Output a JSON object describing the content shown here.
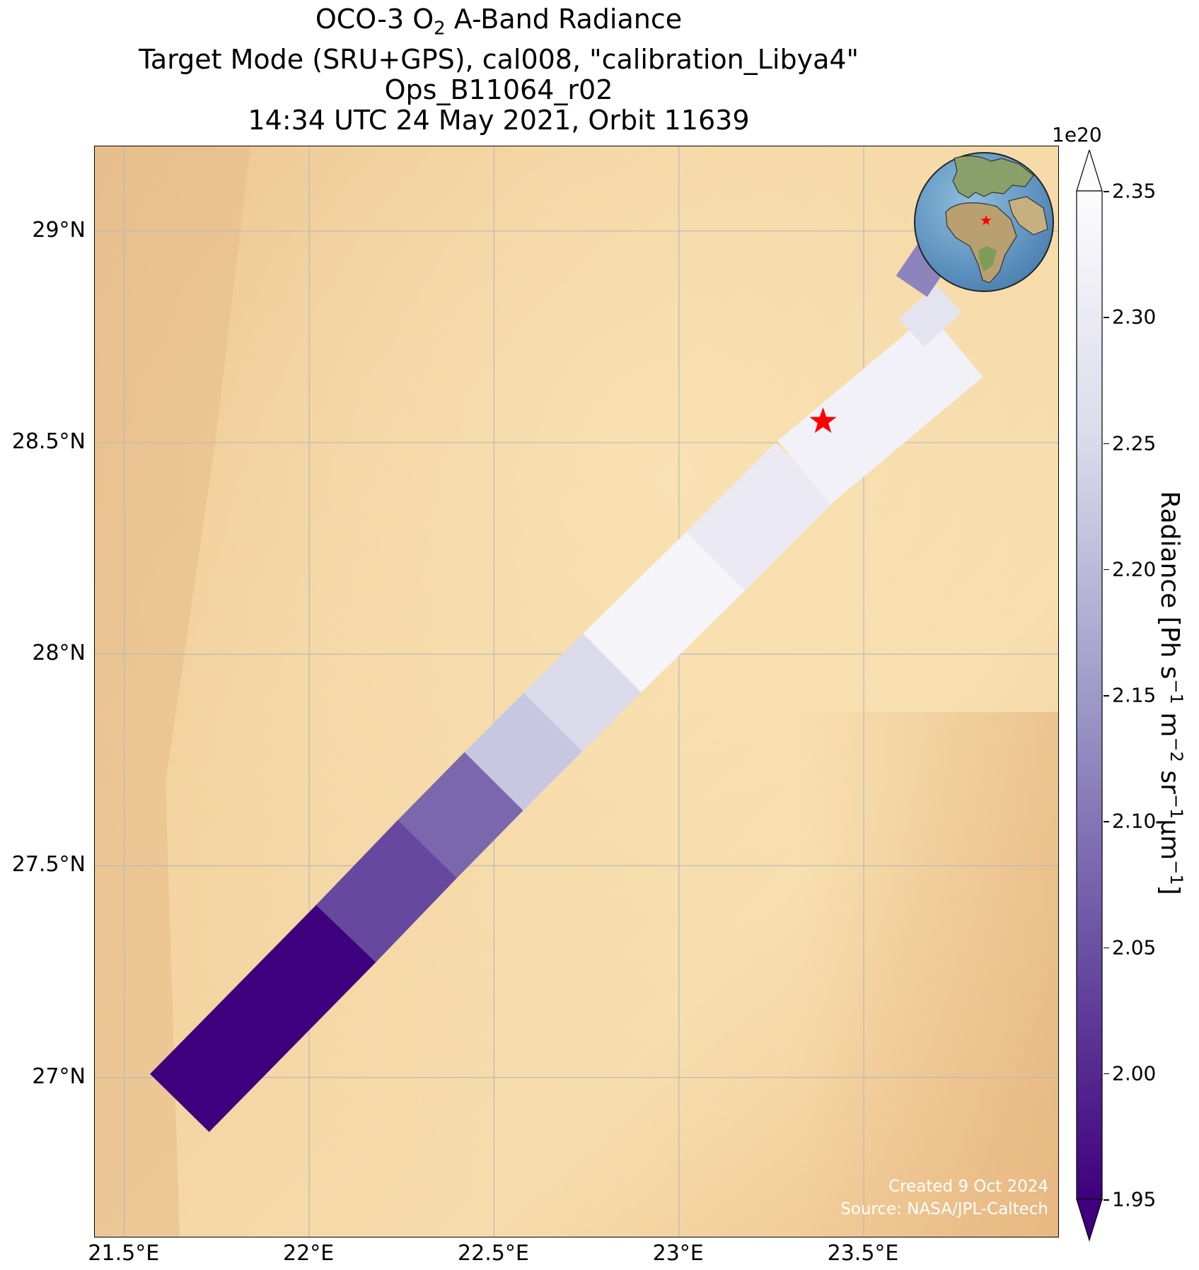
{
  "title": {
    "line1_prefix": "OCO-3 O",
    "line1_sub": "2",
    "line1_suffix": " A-Band Radiance",
    "line2": "Target Mode (SRU+GPS), cal008, \"calibration_Libya4\"",
    "line3": "Ops_B11064_r02",
    "line4": "14:34 UTC 24 May 2021, Orbit 11639"
  },
  "credits": {
    "created": "Created 9 Oct 2024",
    "source": "Source: NASA/JPL-Caltech"
  },
  "colors": {
    "background_map": "#f3d7a6",
    "colormap_low": "#3f007d",
    "colormap_high": "#fcfbfd",
    "target_marker": "#ff0000",
    "gridline": "#b9b9b9"
  },
  "chart_data": {
    "type": "heatmap",
    "projection": "map swath (lon/lat)",
    "xlim": [
      21.42,
      24.03
    ],
    "ylim": [
      26.62,
      29.2
    ],
    "x_ticks": [
      {
        "value": 21.5,
        "label": "21.5°E"
      },
      {
        "value": 22.0,
        "label": "22°E"
      },
      {
        "value": 22.5,
        "label": "22.5°E"
      },
      {
        "value": 23.0,
        "label": "23°E"
      },
      {
        "value": 23.5,
        "label": "23.5°E"
      }
    ],
    "y_ticks": [
      {
        "value": 27.0,
        "label": "27°N"
      },
      {
        "value": 27.5,
        "label": "27.5°N"
      },
      {
        "value": 28.0,
        "label": "28°N"
      },
      {
        "value": 28.5,
        "label": "28.5°N"
      },
      {
        "value": 29.0,
        "label": "29°N"
      }
    ],
    "grid": true,
    "target": {
      "name": "calibration_Libya4",
      "lon": 23.39,
      "lat": 28.55,
      "marker": "star"
    },
    "colorbar": {
      "label_parts": [
        "Radiance [Ph s",
        "−1",
        " m",
        "−2",
        " sr",
        "−1",
        "μm",
        "−1",
        "]"
      ],
      "scale_label": "1e20",
      "range": [
        1.95,
        2.35
      ],
      "extend": "both",
      "ticks": [
        "1.95",
        "2.00",
        "2.05",
        "2.10",
        "2.15",
        "2.20",
        "2.25",
        "2.30",
        "2.35"
      ]
    },
    "swath_segments": [
      {
        "lon_start": 21.65,
        "lat_start": 26.94,
        "lon_end": 22.1,
        "lat_end": 27.34,
        "radiance": 1.95
      },
      {
        "lon_start": 22.1,
        "lat_start": 27.34,
        "lon_end": 22.32,
        "lat_end": 27.54,
        "radiance": 2.04
      },
      {
        "lon_start": 22.32,
        "lat_start": 27.54,
        "lon_end": 22.5,
        "lat_end": 27.7,
        "radiance": 2.08
      },
      {
        "lon_start": 22.5,
        "lat_start": 27.7,
        "lon_end": 22.66,
        "lat_end": 27.84,
        "radiance": 2.22
      },
      {
        "lon_start": 22.66,
        "lat_start": 27.84,
        "lon_end": 22.82,
        "lat_end": 27.98,
        "radiance": 2.25
      },
      {
        "lon_start": 22.82,
        "lat_start": 27.98,
        "lon_end": 23.1,
        "lat_end": 28.22,
        "radiance": 2.33
      },
      {
        "lon_start": 23.1,
        "lat_start": 28.22,
        "lon_end": 23.34,
        "lat_end": 28.43,
        "radiance": 2.3
      },
      {
        "lon_start": 23.34,
        "lat_start": 28.43,
        "lon_end": 23.75,
        "lat_end": 28.73,
        "radiance": 2.32
      },
      {
        "lon_start": 23.63,
        "lat_start": 28.76,
        "lon_end": 23.73,
        "lat_end": 28.84,
        "radiance": 2.28
      },
      {
        "lon_start": 23.63,
        "lat_start": 28.87,
        "lon_end": 23.7,
        "lat_end": 28.96,
        "radiance": 2.12
      }
    ]
  }
}
